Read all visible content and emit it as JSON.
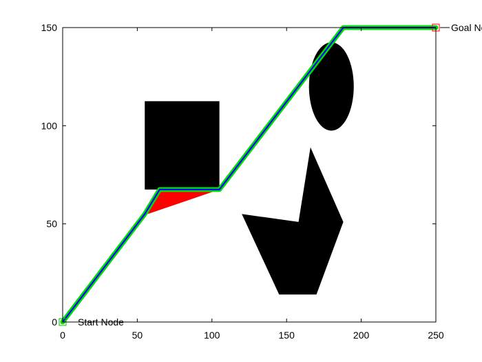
{
  "chart_data": {
    "type": "scatter",
    "title": "",
    "xlabel": "",
    "ylabel": "",
    "xlim": [
      0,
      250
    ],
    "ylim": [
      0,
      150
    ],
    "xticks": [
      0,
      50,
      100,
      150,
      200,
      250
    ],
    "yticks": [
      0,
      50,
      100,
      150
    ],
    "grid": false,
    "path": {
      "points": [
        [
          0,
          0
        ],
        [
          55,
          55
        ],
        [
          65,
          67.5
        ],
        [
          105,
          67.5
        ],
        [
          188,
          150
        ],
        [
          250,
          150
        ]
      ],
      "colors": {
        "band": "#00e000",
        "line": "#0000ff"
      }
    },
    "explored_region": {
      "points": [
        [
          57,
          55
        ],
        [
          65,
          67.5
        ],
        [
          105,
          67.5
        ]
      ],
      "color": "#ff0000"
    },
    "obstacles": [
      {
        "type": "rect",
        "x": [
          55,
          105
        ],
        "y": [
          67.5,
          112.5
        ],
        "color": "#000000"
      },
      {
        "type": "ellipse",
        "center": [
          180,
          120
        ],
        "radii": [
          15,
          15
        ],
        "color": "#000000"
      },
      {
        "type": "polygon",
        "points": [
          [
            120,
            55
          ],
          [
            158,
            51
          ],
          [
            166,
            89
          ],
          [
            188,
            51
          ],
          [
            170,
            14
          ],
          [
            145,
            14
          ]
        ],
        "color": "#000000"
      }
    ],
    "start": {
      "point": [
        0,
        0
      ],
      "label": "Start Node",
      "marker_color": "#00c000"
    },
    "goal": {
      "point": [
        250,
        150
      ],
      "label": "Goal Node",
      "marker_color": "#ff0000"
    }
  }
}
